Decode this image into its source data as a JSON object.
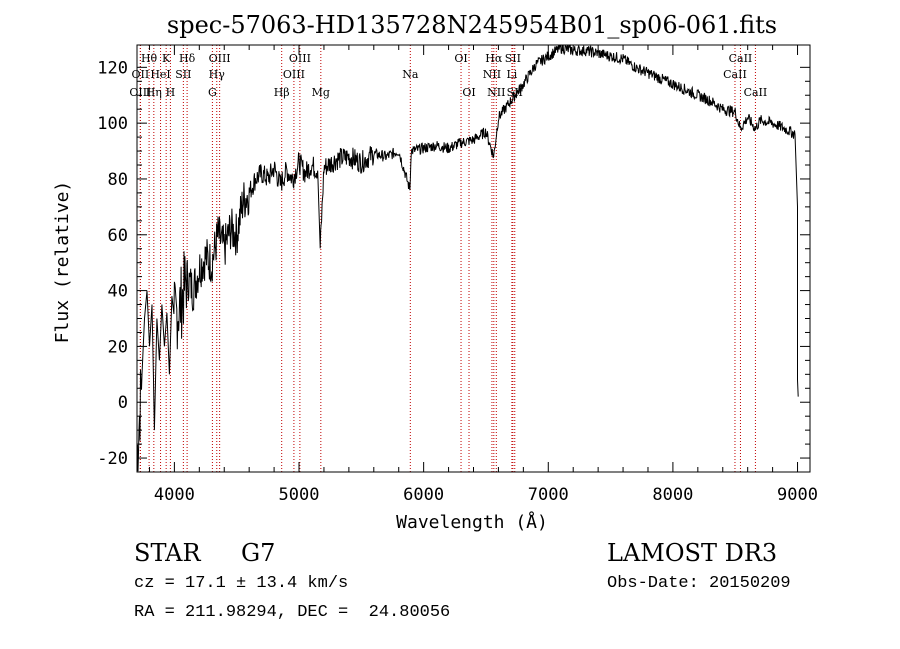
{
  "chart_data": {
    "type": "line",
    "title": "spec-57063-HD135728N245954B01_sp06-061.fits",
    "xlabel": "Wavelength (Å)",
    "ylabel": "Flux (relative)",
    "xlim": [
      3700,
      9100
    ],
    "ylim": [
      -25,
      128
    ],
    "xticks": [
      4000,
      5000,
      6000,
      7000,
      8000,
      9000
    ],
    "yticks": [
      -20,
      0,
      20,
      40,
      60,
      80,
      100,
      120
    ],
    "grid": false,
    "series": [
      {
        "name": "flux",
        "x": [
          3700,
          3740,
          3760,
          3780,
          3800,
          3820,
          3840,
          3860,
          3880,
          3900,
          3920,
          3940,
          3960,
          3980,
          4000,
          4050,
          4100,
          4150,
          4200,
          4250,
          4300,
          4350,
          4400,
          4450,
          4500,
          4550,
          4600,
          4650,
          4700,
          4750,
          4800,
          4850,
          4900,
          4950,
          5000,
          5050,
          5100,
          5150,
          5170,
          5200,
          5300,
          5400,
          5500,
          5600,
          5700,
          5800,
          5890,
          5900,
          6000,
          6100,
          6200,
          6300,
          6400,
          6500,
          6562,
          6600,
          6700,
          6800,
          6900,
          7000,
          7100,
          7200,
          7300,
          7400,
          7500,
          7600,
          7700,
          7800,
          7900,
          8000,
          8100,
          8200,
          8300,
          8400,
          8500,
          8542,
          8600,
          8662,
          8700,
          8800,
          8900,
          8980,
          9000,
          9000,
          9005
        ],
        "y": [
          -20,
          10,
          30,
          40,
          20,
          35,
          -10,
          30,
          15,
          35,
          20,
          32,
          10,
          38,
          30,
          35,
          45,
          40,
          48,
          52,
          50,
          60,
          55,
          62,
          60,
          72,
          75,
          80,
          82,
          80,
          84,
          78,
          83,
          80,
          86,
          82,
          85,
          83,
          55,
          84,
          87,
          88,
          86,
          89,
          88,
          90,
          76,
          90,
          91,
          92,
          91,
          93,
          94,
          97,
          88,
          102,
          108,
          114,
          121,
          124,
          127,
          126,
          126,
          125,
          124,
          123,
          120,
          118,
          116,
          114,
          112,
          110,
          108,
          105,
          104,
          98,
          102,
          98,
          101,
          100,
          98,
          96,
          70,
          8,
          2
        ]
      }
    ],
    "lines": [
      {
        "label": "Hθ",
        "wave": 3797,
        "row": 1
      },
      {
        "label": "K",
        "wave": 3934,
        "row": 1
      },
      {
        "label": "Hδ",
        "wave": 4102,
        "row": 1
      },
      {
        "label": "OIII",
        "wave": 4363,
        "row": 1
      },
      {
        "label": "OIII",
        "wave": 5007,
        "row": 1
      },
      {
        "label": "OI",
        "wave": 6300,
        "row": 1
      },
      {
        "label": "Hα",
        "wave": 6563,
        "row": 1
      },
      {
        "label": "SII",
        "wave": 6716,
        "row": 1
      },
      {
        "label": "CaII",
        "wave": 8542,
        "row": 1
      },
      {
        "label": "OII",
        "wave": 3727,
        "row": 2
      },
      {
        "label": "HeI",
        "wave": 3889,
        "row": 2
      },
      {
        "label": "SII",
        "wave": 4072,
        "row": 2
      },
      {
        "label": "Hγ",
        "wave": 4340,
        "row": 2
      },
      {
        "label": "OIII",
        "wave": 4959,
        "row": 2
      },
      {
        "label": "Na",
        "wave": 5893,
        "row": 2
      },
      {
        "label": "NII",
        "wave": 6548,
        "row": 2
      },
      {
        "label": "Li",
        "wave": 6708,
        "row": 2
      },
      {
        "label": "CaII",
        "wave": 8498,
        "row": 2
      },
      {
        "label": "OIII",
        "wave": 3727,
        "row": 3
      },
      {
        "label": "Hη",
        "wave": 3835,
        "row": 3
      },
      {
        "label": "H",
        "wave": 3968,
        "row": 3
      },
      {
        "label": "G",
        "wave": 4305,
        "row": 3
      },
      {
        "label": "Hβ",
        "wave": 4861,
        "row": 3
      },
      {
        "label": "Mg",
        "wave": 5175,
        "row": 3
      },
      {
        "label": "OI",
        "wave": 6364,
        "row": 3
      },
      {
        "label": "NII",
        "wave": 6583,
        "row": 3
      },
      {
        "label": "SII",
        "wave": 6731,
        "row": 3
      },
      {
        "label": "CaII",
        "wave": 8662,
        "row": 3
      }
    ]
  },
  "info": {
    "class": "STAR",
    "subclass": "G7",
    "survey": "LAMOST DR3",
    "cz": "cz = 17.1 ± 13.4 km/s",
    "obs_date": "Obs-Date: 20150209",
    "coords": "RA = 211.98294, DEC =  24.80056"
  }
}
